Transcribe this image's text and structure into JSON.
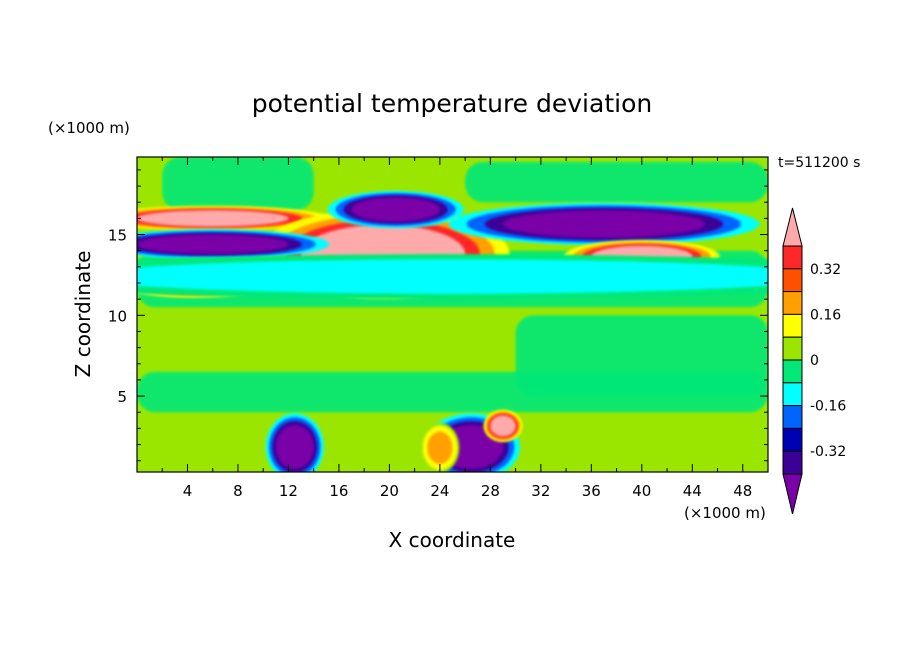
{
  "chart_data": {
    "type": "heatmap",
    "title": "potential temperature deviation",
    "xlabel": "X coordinate",
    "ylabel": "Z coordinate",
    "x_unit": "(×1000 m)",
    "y_unit": "(×1000 m)",
    "time_label": "t=511200 s",
    "xlim": [
      0,
      50
    ],
    "ylim": [
      0.3,
      19.8
    ],
    "x_ticks": [
      4,
      8,
      12,
      16,
      20,
      24,
      28,
      32,
      36,
      40,
      44,
      48
    ],
    "y_ticks": [
      5,
      10,
      15
    ],
    "colorbar": {
      "levels": [
        -0.4,
        -0.32,
        -0.24,
        -0.16,
        -0.08,
        0,
        0.08,
        0.16,
        0.24,
        0.32,
        0.4
      ],
      "labels": [
        "0.32",
        "0.16",
        "0",
        "-0.16",
        "-0.32"
      ],
      "label_values": [
        0.32,
        0.16,
        0,
        -0.16,
        -0.32
      ],
      "colors": [
        "#7a00a8",
        "#3c0096",
        "#0000b4",
        "#0064ff",
        "#00ffff",
        "#00e878",
        "#9be600",
        "#ffff00",
        "#ffa000",
        "#ff5000",
        "#ff2828",
        "#ffaaaa"
      ]
    },
    "features": [
      {
        "name": "upper-warm-band-1",
        "x": [
          0,
          12
        ],
        "z": [
          15.5,
          16.5
        ],
        "value": 0.45
      },
      {
        "name": "upper-warm-plume",
        "x": [
          13,
          26
        ],
        "z": [
          12.0,
          15.6
        ],
        "value": 0.45
      },
      {
        "name": "upper-cold-band",
        "x": [
          0,
          12
        ],
        "z": [
          13.8,
          15.0
        ],
        "value": -0.45
      },
      {
        "name": "upper-cold-cap",
        "x": [
          17,
          24
        ],
        "z": [
          15.8,
          17.3
        ],
        "value": -0.45
      },
      {
        "name": "upper-cold-right",
        "x": [
          29,
          45
        ],
        "z": [
          14.8,
          16.5
        ],
        "value": -0.45
      },
      {
        "name": "right-warm-band",
        "x": [
          36,
          44
        ],
        "z": [
          13.0,
          14.3
        ],
        "value": 0.45
      },
      {
        "name": "lower-warm-band",
        "x": [
          0,
          9
        ],
        "z": [
          11.5,
          13.0
        ],
        "value": 0.45
      },
      {
        "name": "cyan-layer",
        "x": [
          0,
          50
        ],
        "z": [
          11.5,
          13.3
        ],
        "value": -0.12
      },
      {
        "name": "surface-cold-1",
        "x": [
          11,
          14
        ],
        "z": [
          0.5,
          3.2
        ],
        "value": -0.45
      },
      {
        "name": "surface-cold-2",
        "x": [
          24,
          29
        ],
        "z": [
          0.5,
          3.2
        ],
        "value": -0.45
      },
      {
        "name": "surface-warm-1",
        "x": [
          23,
          25
        ],
        "z": [
          0.8,
          2.8
        ],
        "value": 0.2
      },
      {
        "name": "surface-warm-2",
        "x": [
          28,
          30
        ],
        "z": [
          2.5,
          3.8
        ],
        "value": 0.45
      }
    ]
  }
}
